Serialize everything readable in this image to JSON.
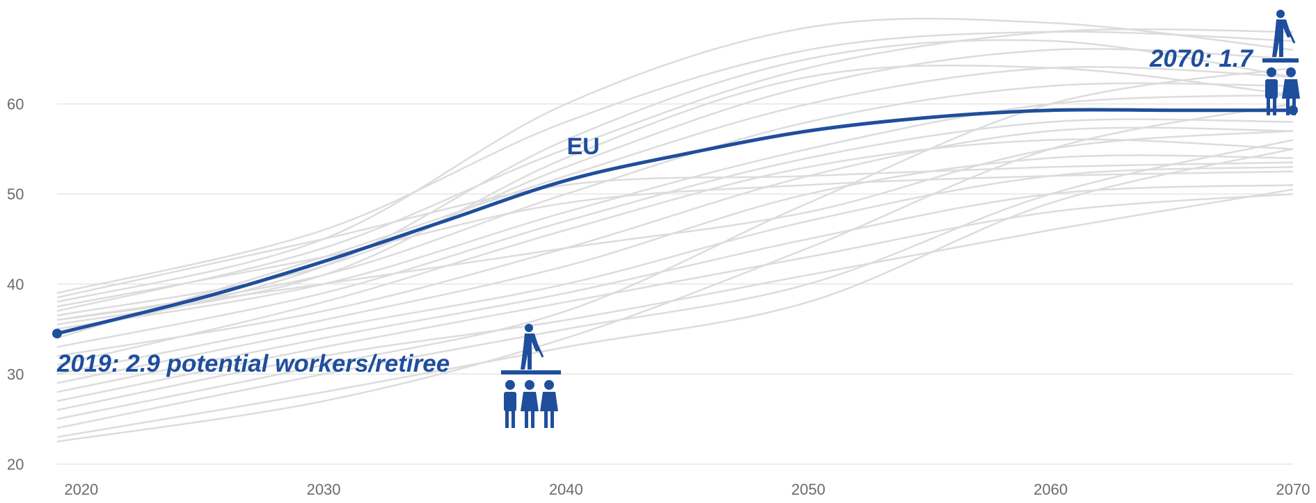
{
  "chart_data": {
    "type": "line",
    "title": "",
    "xlabel": "",
    "ylabel": "",
    "xlim": [
      2019,
      2070
    ],
    "ylim": [
      20,
      70
    ],
    "x_ticks": [
      "2020",
      "2030",
      "2040",
      "2050",
      "2060",
      "2070"
    ],
    "y_ticks": [
      "20",
      "30",
      "40",
      "50",
      "60"
    ],
    "grid": "horizontal",
    "highlight_series": {
      "name": "EU",
      "color": "#1f4e9c",
      "x": [
        2019,
        2025,
        2030,
        2035,
        2040,
        2045,
        2050,
        2055,
        2060,
        2065,
        2070
      ],
      "values": [
        34.5,
        38.5,
        42.5,
        47.0,
        51.5,
        54.5,
        57.0,
        58.5,
        59.3,
        59.3,
        59.3
      ]
    },
    "background_series_color": "#dcdcdc",
    "background_series": [
      {
        "x": [
          2019,
          2030,
          2040,
          2050,
          2060,
          2070
        ],
        "values": [
          39.0,
          46.0,
          58.0,
          66.0,
          68.0,
          67.0
        ]
      },
      {
        "x": [
          2019,
          2030,
          2040,
          2050,
          2060,
          2070
        ],
        "values": [
          38.0,
          45.0,
          60.0,
          68.5,
          69.0,
          66.0
        ]
      },
      {
        "x": [
          2019,
          2030,
          2040,
          2050,
          2060,
          2070
        ],
        "values": [
          37.0,
          44.0,
          55.0,
          64.0,
          68.0,
          68.0
        ]
      },
      {
        "x": [
          2019,
          2030,
          2040,
          2050,
          2060,
          2070
        ],
        "values": [
          36.5,
          42.0,
          53.0,
          62.0,
          66.0,
          65.0
        ]
      },
      {
        "x": [
          2019,
          2030,
          2040,
          2050,
          2060,
          2070
        ],
        "values": [
          36.0,
          41.0,
          50.0,
          58.0,
          62.0,
          62.0
        ]
      },
      {
        "x": [
          2019,
          2030,
          2040,
          2050,
          2060,
          2070
        ],
        "values": [
          35.0,
          40.0,
          48.0,
          55.0,
          60.0,
          61.0
        ]
      },
      {
        "x": [
          2019,
          2030,
          2040,
          2050,
          2060,
          2070
        ],
        "values": [
          34.0,
          43.0,
          52.0,
          60.0,
          64.0,
          63.0
        ]
      },
      {
        "x": [
          2019,
          2030,
          2040,
          2050,
          2060,
          2070
        ],
        "values": [
          33.0,
          39.0,
          47.0,
          54.0,
          58.0,
          58.0
        ]
      },
      {
        "x": [
          2019,
          2030,
          2040,
          2050,
          2060,
          2070
        ],
        "values": [
          32.0,
          37.0,
          44.0,
          52.0,
          57.0,
          57.0
        ]
      },
      {
        "x": [
          2019,
          2030,
          2040,
          2050,
          2060,
          2070
        ],
        "values": [
          31.0,
          38.0,
          46.0,
          53.0,
          56.0,
          55.0
        ]
      },
      {
        "x": [
          2019,
          2030,
          2040,
          2050,
          2060,
          2070
        ],
        "values": [
          30.0,
          36.0,
          42.0,
          50.0,
          54.0,
          54.0
        ]
      },
      {
        "x": [
          2019,
          2030,
          2040,
          2050,
          2060,
          2070
        ],
        "values": [
          29.0,
          35.0,
          40.0,
          47.0,
          52.0,
          53.0
        ]
      },
      {
        "x": [
          2019,
          2030,
          2040,
          2050,
          2060,
          2070
        ],
        "values": [
          28.0,
          34.0,
          39.0,
          45.0,
          50.0,
          51.0
        ]
      },
      {
        "x": [
          2019,
          2030,
          2040,
          2050,
          2060,
          2070
        ],
        "values": [
          27.0,
          33.0,
          38.0,
          43.0,
          48.0,
          50.0
        ]
      },
      {
        "x": [
          2019,
          2030,
          2040,
          2050,
          2060,
          2070
        ],
        "values": [
          26.0,
          32.0,
          36.0,
          41.0,
          46.0,
          50.5
        ]
      },
      {
        "x": [
          2019,
          2030,
          2040,
          2050,
          2060,
          2070
        ],
        "values": [
          24.0,
          30.0,
          35.0,
          40.0,
          50.0,
          56.0
        ]
      },
      {
        "x": [
          2019,
          2030,
          2040,
          2050,
          2060,
          2070
        ],
        "values": [
          23.0,
          28.0,
          33.0,
          38.0,
          49.0,
          55.0
        ]
      },
      {
        "x": [
          2019,
          2030,
          2040,
          2050,
          2060,
          2070
        ],
        "values": [
          22.5,
          27.0,
          34.0,
          44.0,
          55.0,
          60.0
        ]
      },
      {
        "x": [
          2019,
          2030,
          2040,
          2050,
          2060,
          2070
        ],
        "values": [
          25.0,
          31.0,
          37.0,
          49.0,
          60.0,
          64.0
        ]
      },
      {
        "x": [
          2019,
          2030,
          2040,
          2050,
          2060,
          2070
        ],
        "values": [
          38.5,
          45.0,
          51.0,
          52.0,
          53.0,
          53.5
        ]
      },
      {
        "x": [
          2019,
          2030,
          2040,
          2050,
          2060,
          2070
        ],
        "values": [
          37.5,
          43.0,
          49.0,
          51.0,
          52.0,
          52.5
        ]
      },
      {
        "x": [
          2019,
          2030,
          2040,
          2050,
          2060,
          2070
        ],
        "values": [
          36.0,
          40.0,
          44.0,
          48.0,
          55.0,
          57.0
        ]
      },
      {
        "x": [
          2019,
          2030,
          2040,
          2050,
          2060,
          2070
        ],
        "values": [
          35.5,
          41.0,
          54.0,
          63.0,
          64.0,
          61.0
        ]
      },
      {
        "x": [
          2019,
          2030,
          2040,
          2050,
          2060,
          2070
        ],
        "values": [
          34.5,
          42.0,
          56.0,
          65.0,
          67.0,
          63.0
        ]
      }
    ],
    "annotations": {
      "start": {
        "x": 2019,
        "y": 34.5,
        "text": "2019: 2.9 potential workers/retiree"
      },
      "end": {
        "x": 2070,
        "y": 59.3,
        "text": "2070: 1.7"
      },
      "series_label": {
        "x": 2041,
        "y": 53.5,
        "text": "EU"
      }
    }
  }
}
